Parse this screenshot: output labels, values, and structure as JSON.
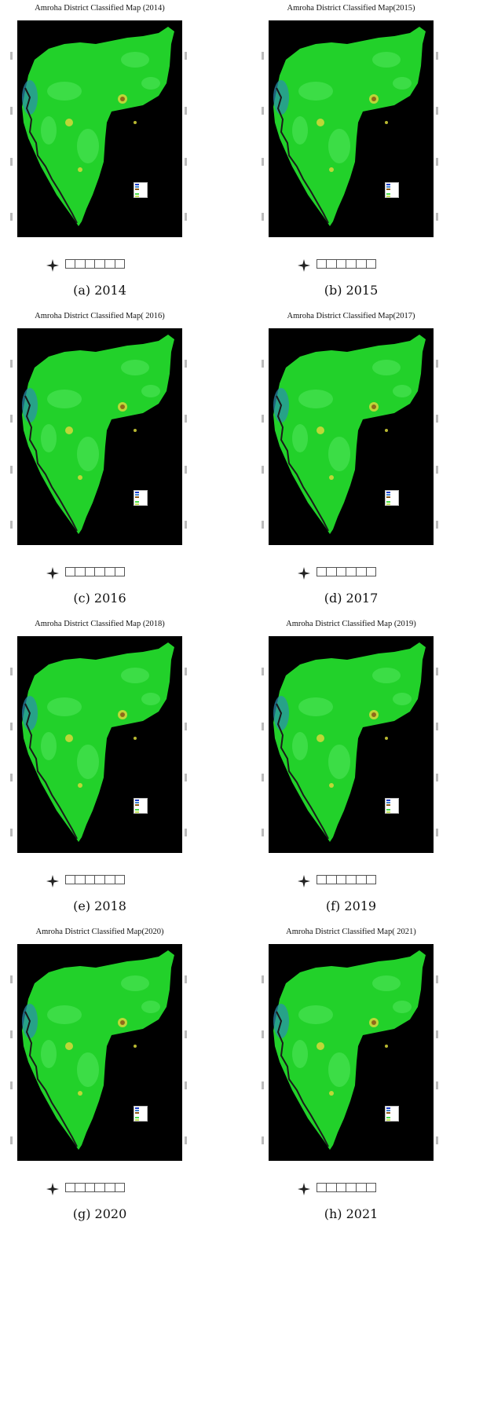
{
  "panels": [
    {
      "title": "Amroha District Classified Map (2014)",
      "caption": "(a) 2014"
    },
    {
      "title": "Amroha District  Classified Map(2015)",
      "caption": "(b) 2015"
    },
    {
      "title": "Amroha District Classified Map( 2016)",
      "caption": "(c) 2016"
    },
    {
      "title": "Amroha District Classified Map(2017)",
      "caption": "(d) 2017"
    },
    {
      "title": "Amroha District Classified Map (2018)",
      "caption": "(e) 2018"
    },
    {
      "title": "Amroha District Classified Map (2019)",
      "caption": "(f) 2019"
    },
    {
      "title": "Amroha District Classified Map(2020)",
      "caption": "(g) 2020"
    },
    {
      "title": "Amroha District Classified Map( 2021)",
      "caption": "(h) 2021"
    }
  ],
  "colors": {
    "background": "#000000",
    "vegetation": "#22d12a",
    "vegetation_light": "#4ee45a",
    "urban": "#8f6a1a",
    "settlement": "#d8d83a",
    "water": "#2a8fb0",
    "river": "#1a1a1a"
  }
}
